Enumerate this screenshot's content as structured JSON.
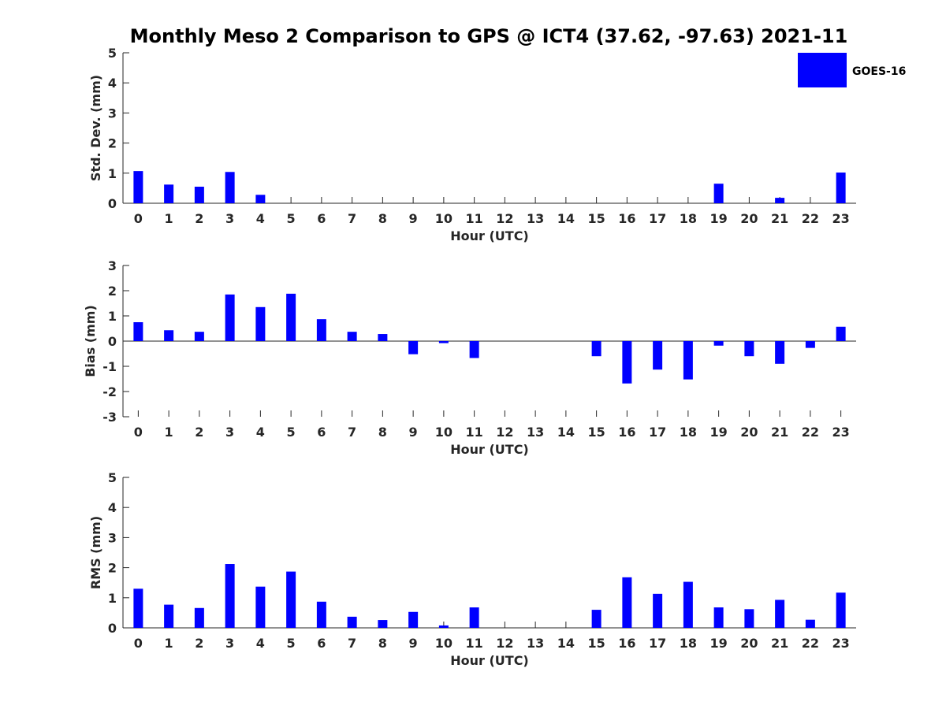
{
  "title": "Monthly Meso 2 Comparison to GPS @ ICT4 (37.62, -97.63) 2021-11",
  "legend": {
    "label": "GOES-16",
    "color": "#0000ff",
    "placement": "top-right"
  },
  "chart_data": [
    {
      "type": "bar",
      "id": "std",
      "ylabel": "Std. Dev. (mm)",
      "xlabel": "Hour (UTC)",
      "ylim": [
        0,
        5
      ],
      "yticks": [
        "0",
        "1",
        "2",
        "3",
        "4",
        "5"
      ],
      "categories": [
        "0",
        "1",
        "2",
        "3",
        "4",
        "5",
        "6",
        "7",
        "8",
        "9",
        "10",
        "11",
        "12",
        "13",
        "14",
        "15",
        "16",
        "17",
        "18",
        "19",
        "20",
        "21",
        "22",
        "23"
      ],
      "series": [
        {
          "name": "GOES-16",
          "values": [
            1.07,
            0.62,
            0.55,
            1.04,
            0.28,
            0,
            0,
            0,
            0,
            0,
            0,
            0,
            0,
            0,
            0,
            0,
            0,
            0,
            0,
            0.65,
            0,
            0.18,
            0,
            1.02
          ]
        }
      ]
    },
    {
      "type": "bar",
      "id": "bias",
      "ylabel": "Bias (mm)",
      "xlabel": "Hour (UTC)",
      "ylim": [
        -3,
        3
      ],
      "yticks": [
        "-3",
        "-2",
        "-1",
        "0",
        "1",
        "2",
        "3"
      ],
      "categories": [
        "0",
        "1",
        "2",
        "3",
        "4",
        "5",
        "6",
        "7",
        "8",
        "9",
        "10",
        "11",
        "12",
        "13",
        "14",
        "15",
        "16",
        "17",
        "18",
        "19",
        "20",
        "21",
        "22",
        "23"
      ],
      "series": [
        {
          "name": "GOES-16",
          "values": [
            0.75,
            0.43,
            0.37,
            1.85,
            1.35,
            1.88,
            0.87,
            0.37,
            0.28,
            -0.52,
            -0.08,
            -0.67,
            0,
            0,
            0,
            -0.6,
            -1.68,
            -1.13,
            -1.52,
            -0.18,
            -0.6,
            -0.9,
            -0.27,
            0.57
          ]
        }
      ]
    },
    {
      "type": "bar",
      "id": "rms",
      "ylabel": "RMS (mm)",
      "xlabel": "Hour (UTC)",
      "ylim": [
        0,
        5
      ],
      "yticks": [
        "0",
        "1",
        "2",
        "3",
        "4",
        "5"
      ],
      "categories": [
        "0",
        "1",
        "2",
        "3",
        "4",
        "5",
        "6",
        "7",
        "8",
        "9",
        "10",
        "11",
        "12",
        "13",
        "14",
        "15",
        "16",
        "17",
        "18",
        "19",
        "20",
        "21",
        "22",
        "23"
      ],
      "series": [
        {
          "name": "GOES-16",
          "values": [
            1.3,
            0.77,
            0.66,
            2.12,
            1.37,
            1.87,
            0.87,
            0.37,
            0.26,
            0.53,
            0.08,
            0.68,
            0,
            0,
            0,
            0.6,
            1.68,
            1.13,
            1.53,
            0.68,
            0.62,
            0.93,
            0.27,
            1.17
          ]
        }
      ]
    }
  ]
}
